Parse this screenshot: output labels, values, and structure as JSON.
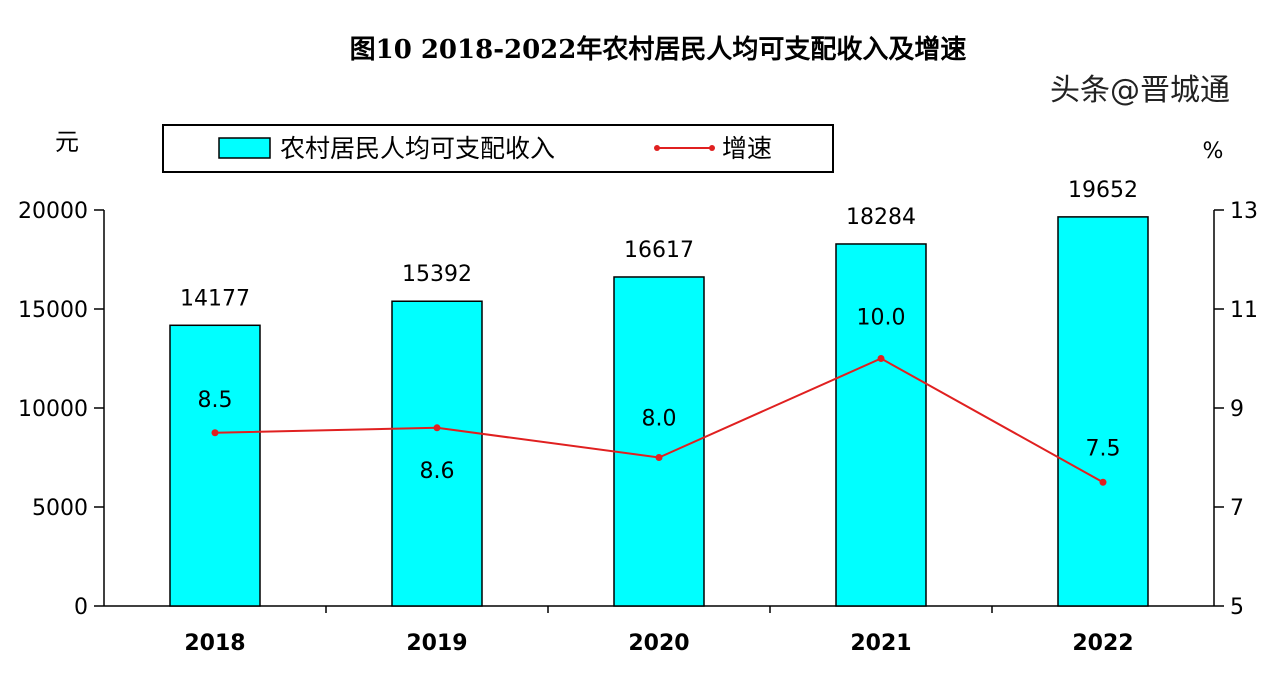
{
  "chart_data": {
    "type": "bar+line",
    "title": "图10  2018-2022年农村居民人均可支配收入及增速",
    "categories": [
      "2018",
      "2019",
      "2020",
      "2021",
      "2022"
    ],
    "series": [
      {
        "name": "农村居民人均可支配收入",
        "type": "bar",
        "axis": "left",
        "values": [
          14177,
          15392,
          16617,
          18284,
          19652
        ],
        "labels": [
          "14177",
          "15392",
          "16617",
          "18284",
          "19652"
        ],
        "color": "#00FFFF"
      },
      {
        "name": "增速",
        "type": "line",
        "axis": "right",
        "values": [
          8.5,
          8.6,
          8.0,
          10.0,
          7.5
        ],
        "labels": [
          "8.5",
          "8.6",
          "8.0",
          "10.0",
          "7.5"
        ],
        "color": "#E02020"
      }
    ],
    "left_axis": {
      "unit": "元",
      "ylim": [
        0,
        20000
      ],
      "ticks": [
        "0",
        "5000",
        "10000",
        "15000",
        "20000"
      ]
    },
    "right_axis": {
      "unit": "%",
      "ylim": [
        5,
        13
      ],
      "ticks": [
        "5",
        "7",
        "9",
        "11",
        "13"
      ]
    },
    "grid": false,
    "legend": "top"
  },
  "watermark": "头条@晋城通"
}
